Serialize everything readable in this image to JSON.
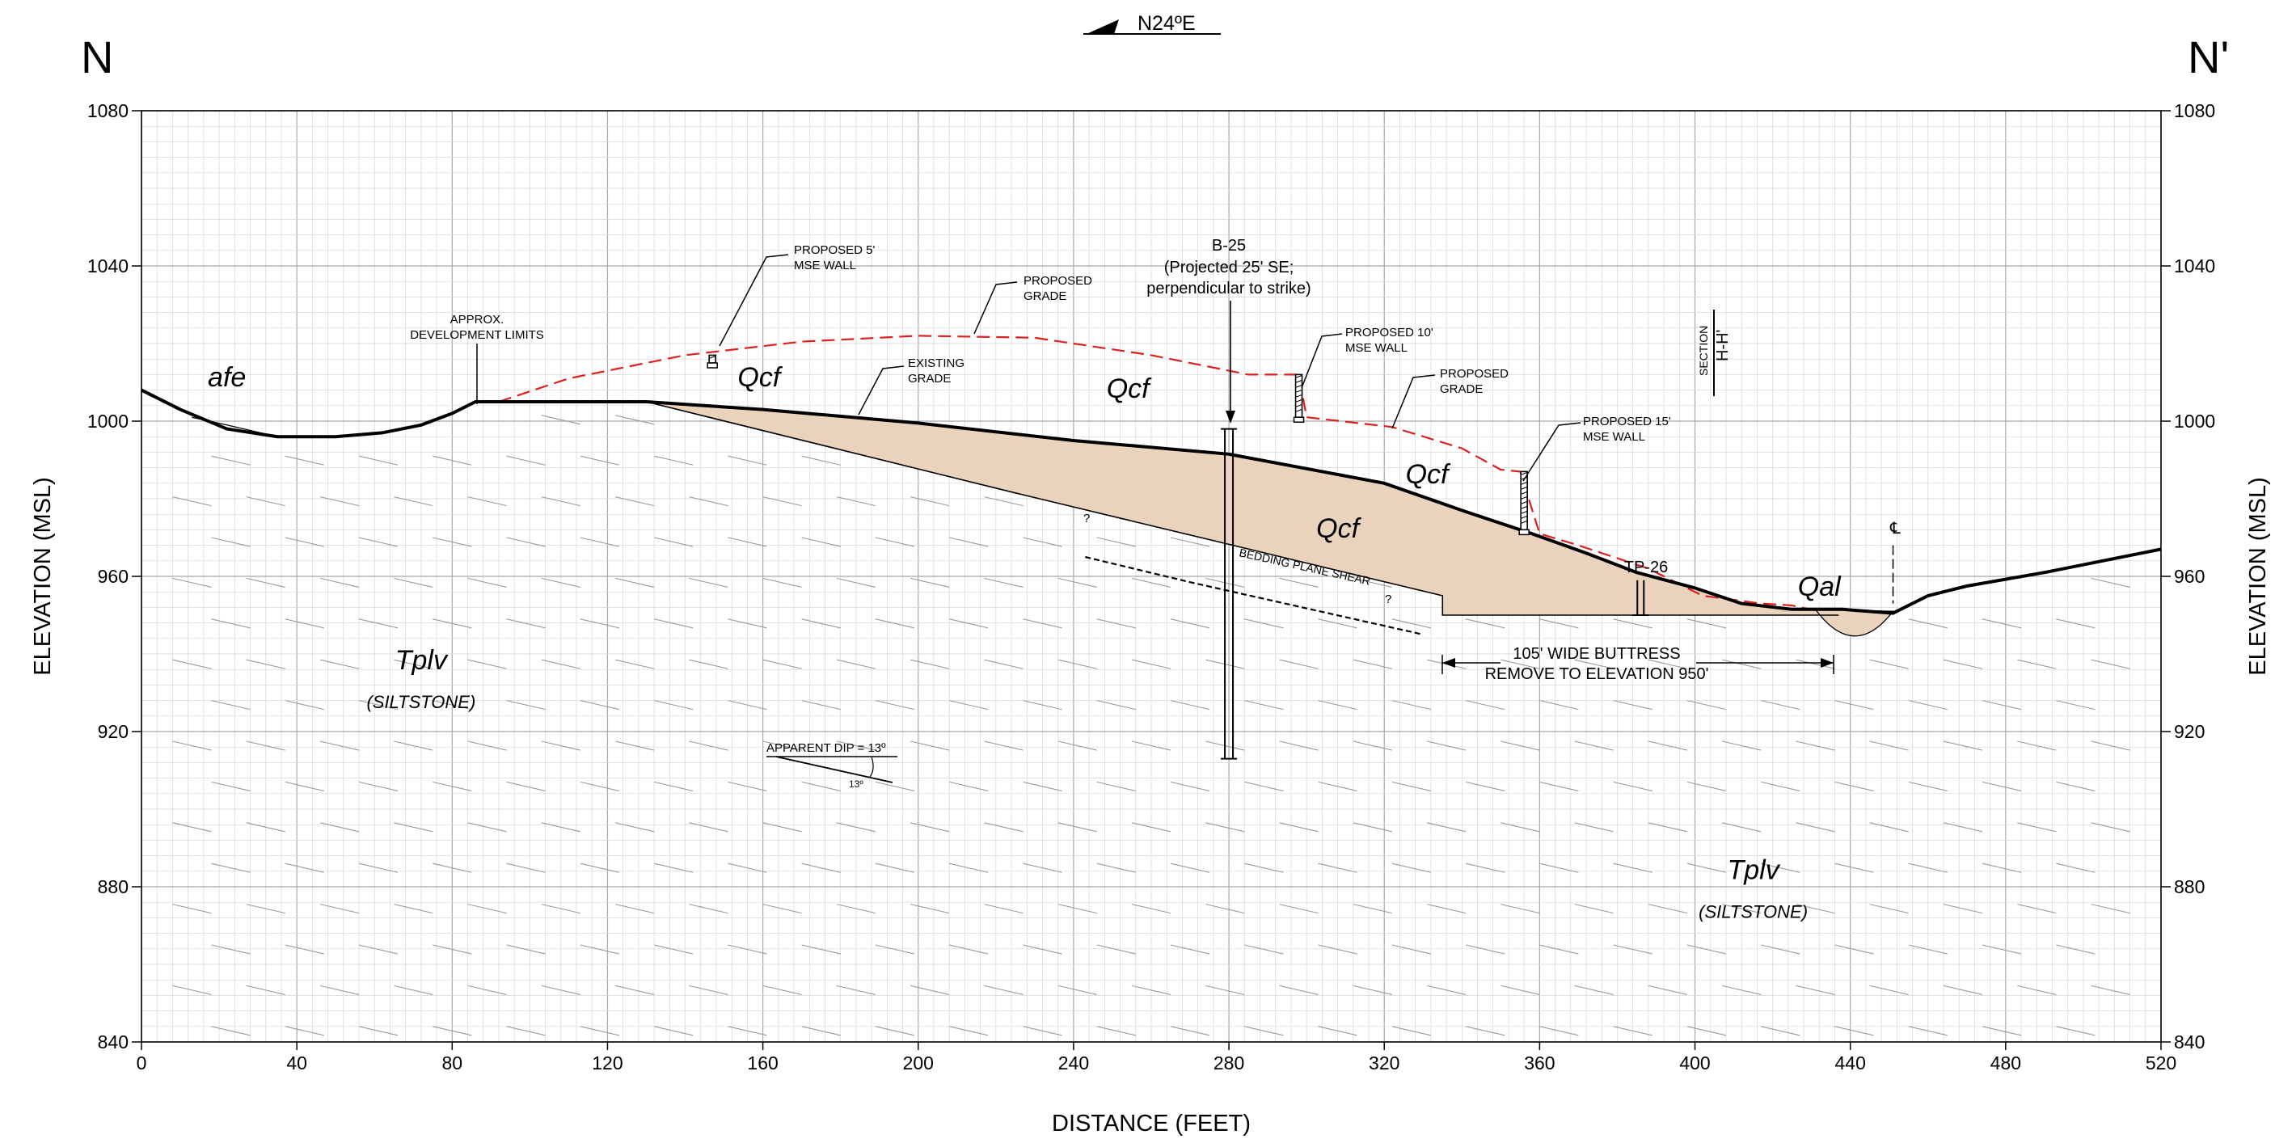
{
  "section": {
    "start_label": "N",
    "end_label": "N'",
    "orientation": "N24ºE",
    "section_tag": [
      "SECTION",
      "H-H'"
    ]
  },
  "axes": {
    "x_title": "DISTANCE (FEET)",
    "y_title": "ELEVATION (MSL)",
    "x_ticks": [
      "0",
      "40",
      "80",
      "120",
      "160",
      "200",
      "240",
      "280",
      "320",
      "360",
      "400",
      "440",
      "480",
      "520"
    ],
    "y_ticks": [
      "840",
      "880",
      "920",
      "960",
      "1000",
      "1040",
      "1080"
    ],
    "x_range": [
      0,
      520
    ],
    "y_range": [
      840,
      1080
    ]
  },
  "units": [
    {
      "id": "afe",
      "label": "afe",
      "sub": "",
      "x": 22,
      "y": 1009
    },
    {
      "id": "qcf-1",
      "label": "Qcf",
      "sub": "",
      "x": 159,
      "y": 1009
    },
    {
      "id": "qcf-2",
      "label": "Qcf",
      "sub": "",
      "x": 254,
      "y": 1006
    },
    {
      "id": "qcf-3",
      "label": "Qcf",
      "sub": "",
      "x": 331,
      "y": 984
    },
    {
      "id": "qcf-4",
      "label": "Qcf",
      "sub": "",
      "x": 308,
      "y": 970
    },
    {
      "id": "qal",
      "label": "Qal",
      "sub": "",
      "x": 432,
      "y": 955
    },
    {
      "id": "tplv-1",
      "label": "Tplv",
      "sub": "(SILTSTONE)",
      "x": 72,
      "y": 936
    },
    {
      "id": "tplv-2",
      "label": "Tplv",
      "sub": "(SILTSTONE)",
      "x": 415,
      "y": 882
    }
  ],
  "annotations": [
    {
      "id": "dev-limits",
      "lines": [
        "APPROX.",
        "DEVELOPMENT LIMITS"
      ]
    },
    {
      "id": "mse-5",
      "lines": [
        "PROPOSED 5'",
        "MSE WALL"
      ]
    },
    {
      "id": "grade-1",
      "lines": [
        "PROPOSED",
        "GRADE"
      ]
    },
    {
      "id": "existing",
      "lines": [
        "EXISTING",
        "GRADE"
      ]
    },
    {
      "id": "b25",
      "lines": [
        "B-25",
        "(Projected 25' SE;",
        "perpendicular to strike)"
      ]
    },
    {
      "id": "mse-10",
      "lines": [
        "PROPOSED 10'",
        "MSE WALL"
      ]
    },
    {
      "id": "grade-2",
      "lines": [
        "PROPOSED",
        "GRADE"
      ]
    },
    {
      "id": "mse-15",
      "lines": [
        "PROPOSED 15'",
        "MSE WALL"
      ]
    },
    {
      "id": "tp26",
      "lines": [
        "TP-26"
      ]
    },
    {
      "id": "buttress",
      "lines": [
        "105' WIDE BUTTRESS",
        "REMOVE TO ELEVATION 950'"
      ]
    },
    {
      "id": "shear",
      "lines": [
        "BEDDING PLANE SHEAR"
      ]
    },
    {
      "id": "dip",
      "lines": [
        "APPARENT DIP = 13º",
        "13º"
      ]
    }
  ],
  "colors": {
    "fill": "#ead3bd",
    "proposed": "#dd1f1f",
    "line": "#000000",
    "grid_minor": "#d5d5d5",
    "grid_major": "#a8a8a8",
    "hatch": "#9a9a9a"
  },
  "profiles": {
    "existing_grade": [
      [
        0,
        1008
      ],
      [
        10,
        1003
      ],
      [
        22,
        998
      ],
      [
        35,
        996
      ],
      [
        50,
        996
      ],
      [
        62,
        997
      ],
      [
        72,
        999
      ],
      [
        80,
        1002
      ],
      [
        86,
        1005
      ],
      [
        130,
        1005
      ],
      [
        160,
        1003
      ],
      [
        200,
        999.5
      ],
      [
        240,
        995
      ],
      [
        280,
        991.5
      ],
      [
        320,
        984
      ],
      [
        340,
        977
      ],
      [
        358,
        971
      ],
      [
        372,
        966
      ],
      [
        385,
        961
      ],
      [
        400,
        957
      ],
      [
        412,
        953
      ],
      [
        425,
        951.5
      ],
      [
        438,
        951.5
      ],
      [
        451,
        950.5
      ],
      [
        460,
        955
      ],
      [
        470,
        957.5
      ],
      [
        490,
        961
      ],
      [
        505,
        964
      ],
      [
        520,
        967
      ]
    ],
    "proposed_grade": [
      [
        92,
        1005
      ],
      [
        110,
        1011
      ],
      [
        140,
        1017
      ],
      [
        170,
        1020.5
      ],
      [
        200,
        1022
      ],
      [
        230,
        1021.5
      ],
      [
        260,
        1017
      ],
      [
        285,
        1012
      ],
      [
        298,
        1012
      ],
      [
        300,
        1001
      ],
      [
        322,
        998.5
      ],
      [
        340,
        993
      ],
      [
        350,
        987.5
      ],
      [
        355,
        987
      ],
      [
        360,
        971
      ],
      [
        370,
        968
      ],
      [
        388,
        962
      ],
      [
        402,
        955
      ],
      [
        417,
        953
      ],
      [
        425,
        952.5
      ],
      [
        432,
        951
      ]
    ],
    "afe_contact": [
      [
        13,
        1001
      ],
      [
        22,
        999
      ],
      [
        35,
        996
      ]
    ],
    "buttress_base": [
      [
        130,
        1005
      ],
      [
        225,
        981.5
      ],
      [
        335,
        955
      ],
      [
        335,
        950
      ],
      [
        437,
        950
      ]
    ],
    "bedding_shear": [
      [
        243,
        965
      ],
      [
        270,
        958.5
      ],
      [
        330,
        945
      ]
    ]
  },
  "structures": {
    "b25": {
      "x": 280,
      "top": 998,
      "bottom": 913
    },
    "tp26": {
      "x": 386,
      "top": 959,
      "bottom": 950
    },
    "centerline": {
      "x": 451,
      "top": 968,
      "bottom": 953
    },
    "walls": [
      {
        "x": 147,
        "y0": 1017,
        "y1": 1015
      },
      {
        "x": 298,
        "y0": 1012,
        "y1": 1001
      },
      {
        "x": 356,
        "y0": 987,
        "y1": 972
      }
    ]
  }
}
